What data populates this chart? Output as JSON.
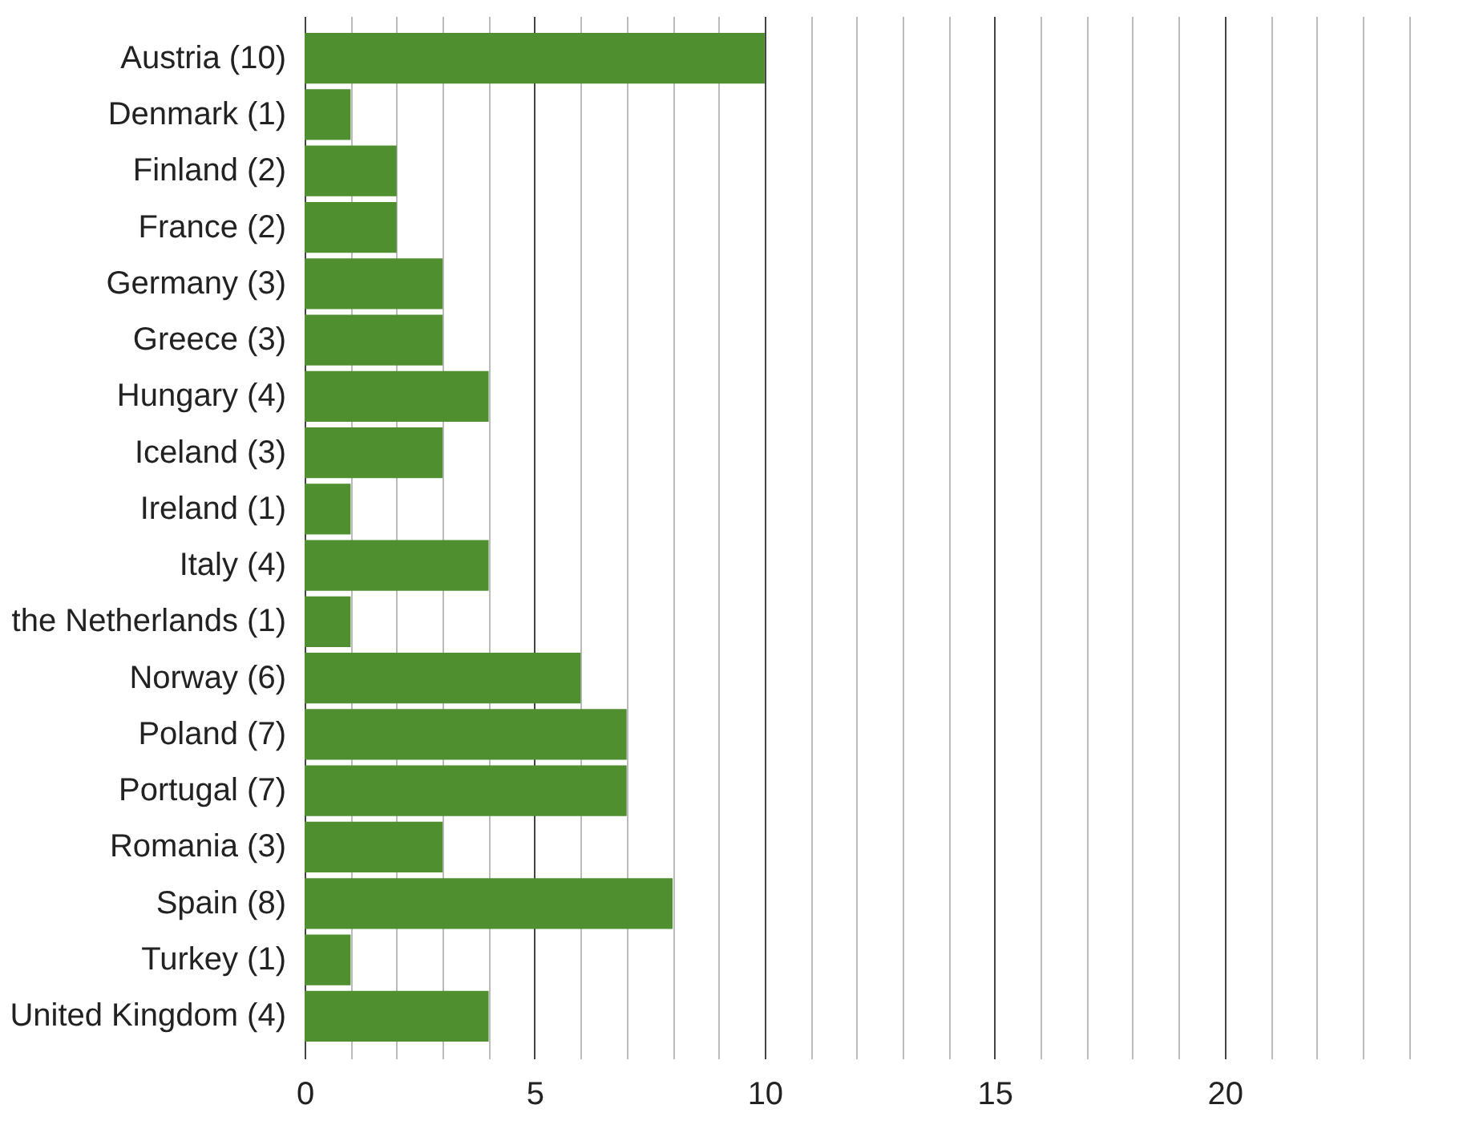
{
  "chart_data": {
    "type": "bar",
    "orientation": "horizontal",
    "categories": [
      "Austria (10)",
      "Denmark (1)",
      "Finland (2)",
      "France (2)",
      "Germany (3)",
      "Greece (3)",
      "Hungary (4)",
      "Iceland (3)",
      "Ireland (1)",
      "Italy (4)",
      "the Netherlands (1)",
      "Norway (6)",
      "Poland (7)",
      "Portugal (7)",
      "Romania (3)",
      "Spain (8)",
      "Turkey (1)",
      "United Kingdom (4)"
    ],
    "values": [
      10,
      1,
      2,
      2,
      3,
      3,
      4,
      3,
      1,
      4,
      1,
      6,
      7,
      7,
      3,
      8,
      1,
      4
    ],
    "color": "#4f8f2f",
    "xlim": [
      0,
      24.5
    ],
    "xticks": [
      0,
      {
        "value": 1,
        "label": null
      },
      {
        "value": 2,
        "label": null
      },
      {
        "value": 3,
        "label": null
      },
      {
        "value": 4,
        "label": null
      },
      5,
      {
        "value": 6,
        "label": null
      },
      {
        "value": 7,
        "label": null
      },
      {
        "value": 8,
        "label": null
      },
      {
        "value": 9,
        "label": null
      },
      10,
      {
        "value": 11,
        "label": null
      },
      {
        "value": 12,
        "label": null
      },
      {
        "value": 13,
        "label": null
      },
      {
        "value": 14,
        "label": null
      },
      15,
      {
        "value": 16,
        "label": null
      },
      {
        "value": 17,
        "label": null
      },
      {
        "value": 18,
        "label": null
      },
      {
        "value": 19,
        "label": null
      },
      20,
      {
        "value": 21,
        "label": null
      },
      {
        "value": 22,
        "label": null
      },
      {
        "value": 23,
        "label": null
      },
      {
        "value": 24,
        "label": null
      }
    ],
    "grid": true
  }
}
